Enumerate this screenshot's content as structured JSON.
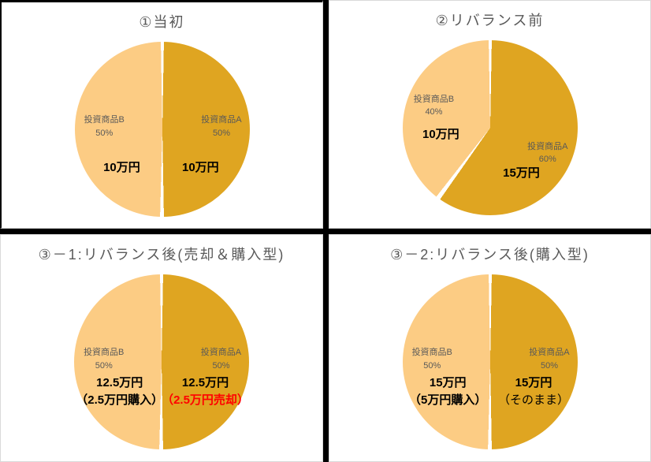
{
  "colors": {
    "product_a": "#DFA521",
    "product_b": "#FCCC84",
    "label_gray": "#595959",
    "note_alert": "#FF0000",
    "panel_border": "#D9D9D9",
    "divider": "#000000"
  },
  "chart_data": [
    {
      "type": "pie",
      "title": "①当初",
      "legend_position": "none",
      "start_angle_deg": 0,
      "slices": [
        {
          "label": "投資商品A",
          "pct": "50%",
          "value": 50,
          "amount": "10万円",
          "note": "",
          "color": "#DFA521"
        },
        {
          "label": "投資商品B",
          "pct": "50%",
          "value": 50,
          "amount": "10万円",
          "note": "",
          "color": "#FCCC84"
        }
      ]
    },
    {
      "type": "pie",
      "title": "②リバランス前",
      "legend_position": "none",
      "start_angle_deg": 0,
      "slices": [
        {
          "label": "投資商品A",
          "pct": "60%",
          "value": 60,
          "amount": "15万円",
          "note": "",
          "color": "#DFA521"
        },
        {
          "label": "投資商品B",
          "pct": "40%",
          "value": 40,
          "amount": "10万円",
          "note": "",
          "color": "#FCCC84"
        }
      ]
    },
    {
      "type": "pie",
      "title": "③－1:リバランス後(売却＆購入型)",
      "legend_position": "none",
      "start_angle_deg": 0,
      "slices": [
        {
          "label": "投資商品A",
          "pct": "50%",
          "value": 50,
          "amount": "12.5万円",
          "note": "（2.5万円売却）",
          "color": "#DFA521"
        },
        {
          "label": "投資商品B",
          "pct": "50%",
          "value": 50,
          "amount": "12.5万円",
          "note": "（2.5万円購入）",
          "color": "#FCCC84"
        }
      ]
    },
    {
      "type": "pie",
      "title": "③－2:リバランス後(購入型)",
      "legend_position": "none",
      "start_angle_deg": 0,
      "slices": [
        {
          "label": "投資商品A",
          "pct": "50%",
          "value": 50,
          "amount": "15万円",
          "note": "（そのまま）",
          "color": "#DFA521"
        },
        {
          "label": "投資商品B",
          "pct": "50%",
          "value": 50,
          "amount": "15万円",
          "note": "（5万円購入）",
          "color": "#FCCC84"
        }
      ]
    }
  ]
}
